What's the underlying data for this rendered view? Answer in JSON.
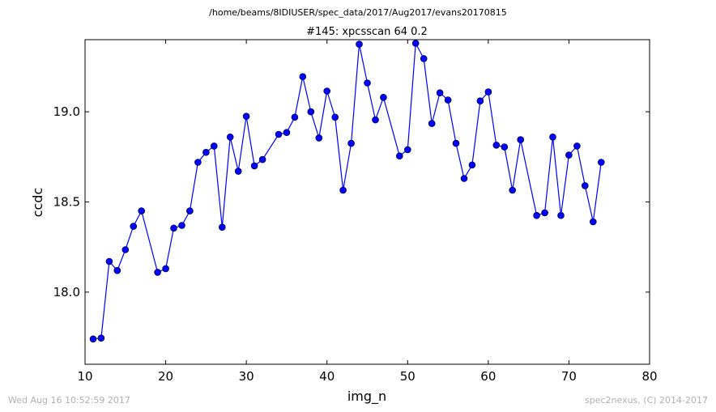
{
  "page": {
    "path_title": "/home/beams/8IDIUSER/spec_data/2017/Aug2017/evans20170815",
    "footer_left": "Wed Aug 16 10:52:59 2017",
    "footer_right": "spec2nexus, (C) 2014-2017"
  },
  "chart_data": {
    "type": "line",
    "title": "#145: xpcsscan 64 0.2",
    "xlabel": "img_n",
    "ylabel": "ccdc",
    "xlim": [
      10,
      80
    ],
    "ylim": [
      17.6,
      19.4
    ],
    "xticks": [
      10,
      20,
      30,
      40,
      50,
      60,
      70,
      80
    ],
    "yticks": [
      18.0,
      18.5,
      19.0
    ],
    "ytick_labels": [
      "18.0",
      "18.5",
      "19.0"
    ],
    "grid": false,
    "legend": "none",
    "series": [
      {
        "color": "#0000ff",
        "marker": "circle",
        "x": [
          11,
          12,
          13,
          14,
          15,
          16,
          17,
          19,
          20,
          21,
          22,
          23,
          24,
          25,
          26,
          27,
          28,
          29,
          30,
          31,
          32,
          34,
          35,
          36,
          37,
          38,
          39,
          40,
          41,
          42,
          43,
          44,
          45,
          46,
          47,
          49,
          50,
          51,
          52,
          53,
          54,
          55,
          56,
          57,
          58,
          59,
          60,
          61,
          62,
          63,
          64,
          66,
          67,
          68,
          69,
          70,
          71,
          72,
          73,
          74
        ],
        "y": [
          17.74,
          17.745,
          18.17,
          18.12,
          18.235,
          18.365,
          18.45,
          18.11,
          18.13,
          18.355,
          18.37,
          18.45,
          18.72,
          18.775,
          18.81,
          18.36,
          18.86,
          18.67,
          18.975,
          18.7,
          18.735,
          18.875,
          18.885,
          18.97,
          19.195,
          19.0,
          18.855,
          19.115,
          18.97,
          18.565,
          18.825,
          19.375,
          19.16,
          18.955,
          19.08,
          18.755,
          18.79,
          19.38,
          19.295,
          18.935,
          19.105,
          19.065,
          18.825,
          18.63,
          18.705,
          19.06,
          19.11,
          18.815,
          18.805,
          18.565,
          18.845,
          18.425,
          18.44,
          18.86,
          18.425,
          18.76,
          18.81,
          18.59,
          18.39,
          18.72
        ]
      }
    ]
  }
}
